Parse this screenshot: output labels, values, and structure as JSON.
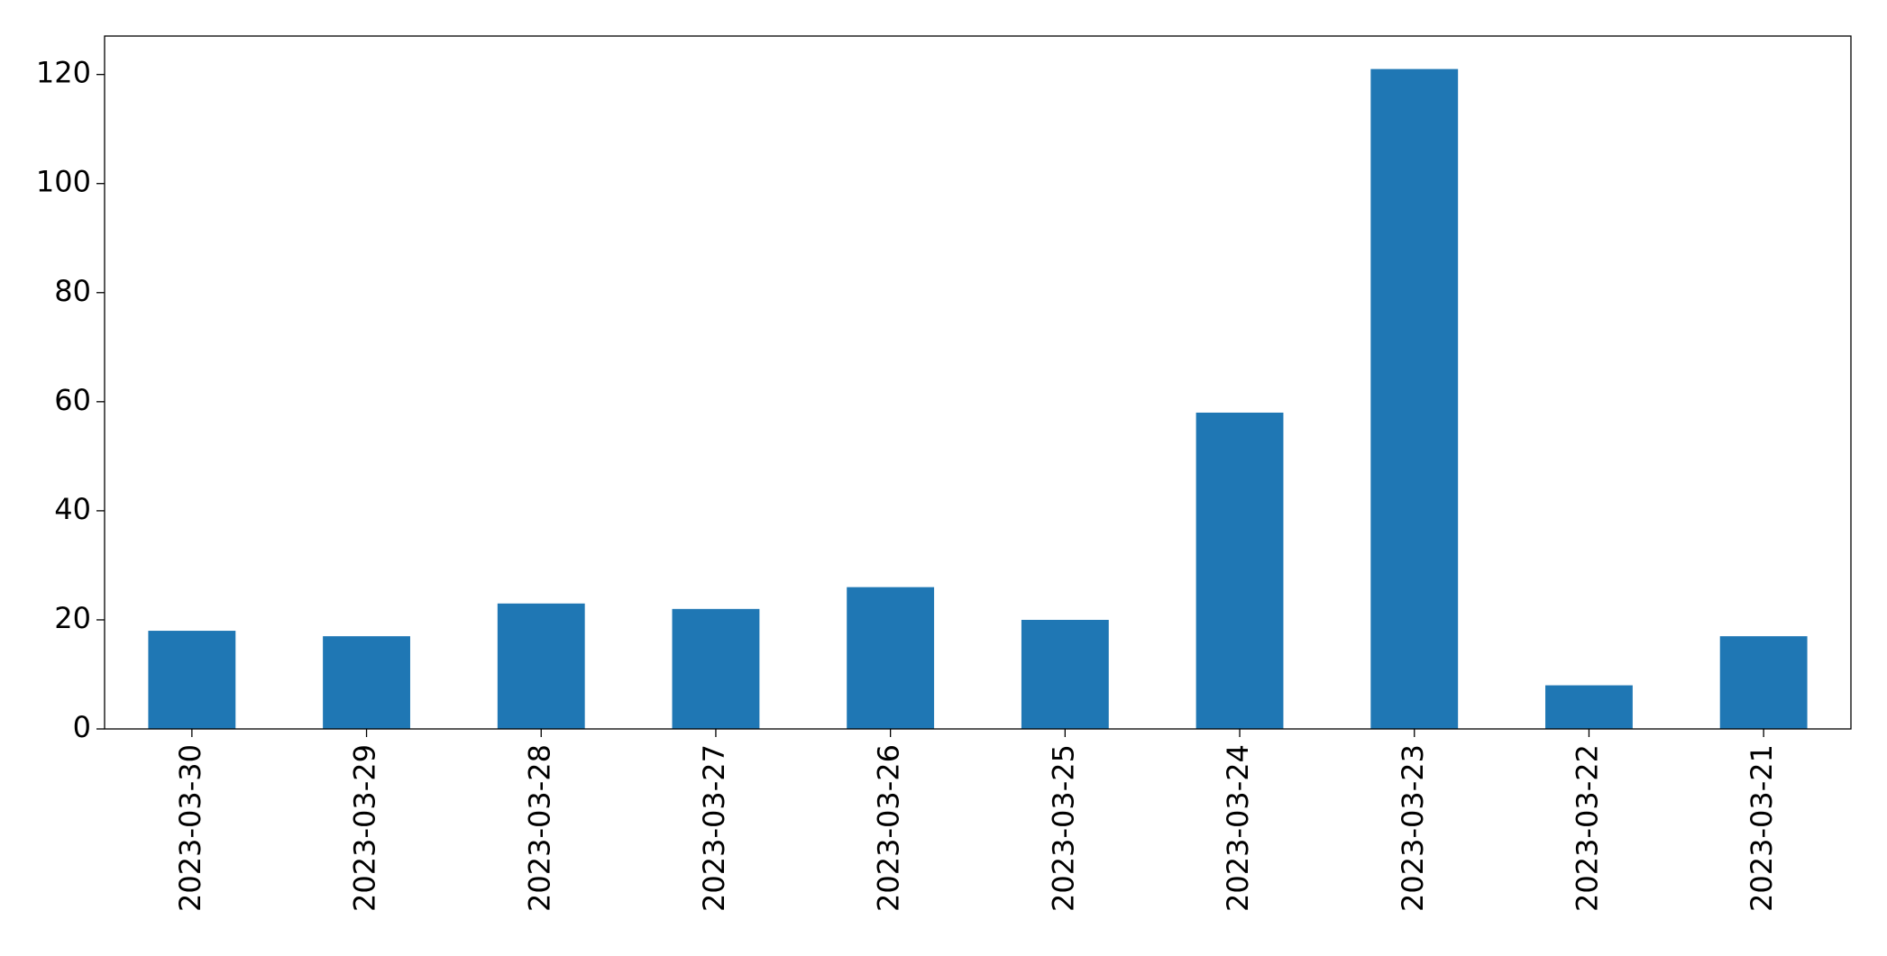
{
  "chart_data": {
    "type": "bar",
    "categories": [
      "2023-03-30",
      "2023-03-29",
      "2023-03-28",
      "2023-03-27",
      "2023-03-26",
      "2023-03-25",
      "2023-03-24",
      "2023-03-23",
      "2023-03-22",
      "2023-03-21"
    ],
    "values": [
      18,
      17,
      23,
      22,
      26,
      20,
      58,
      121,
      8,
      17
    ],
    "color": "#1f77b4",
    "ylim": [
      0,
      127.05
    ],
    "yticks": [
      0,
      20,
      40,
      60,
      80,
      100,
      120
    ],
    "grid": false
  }
}
